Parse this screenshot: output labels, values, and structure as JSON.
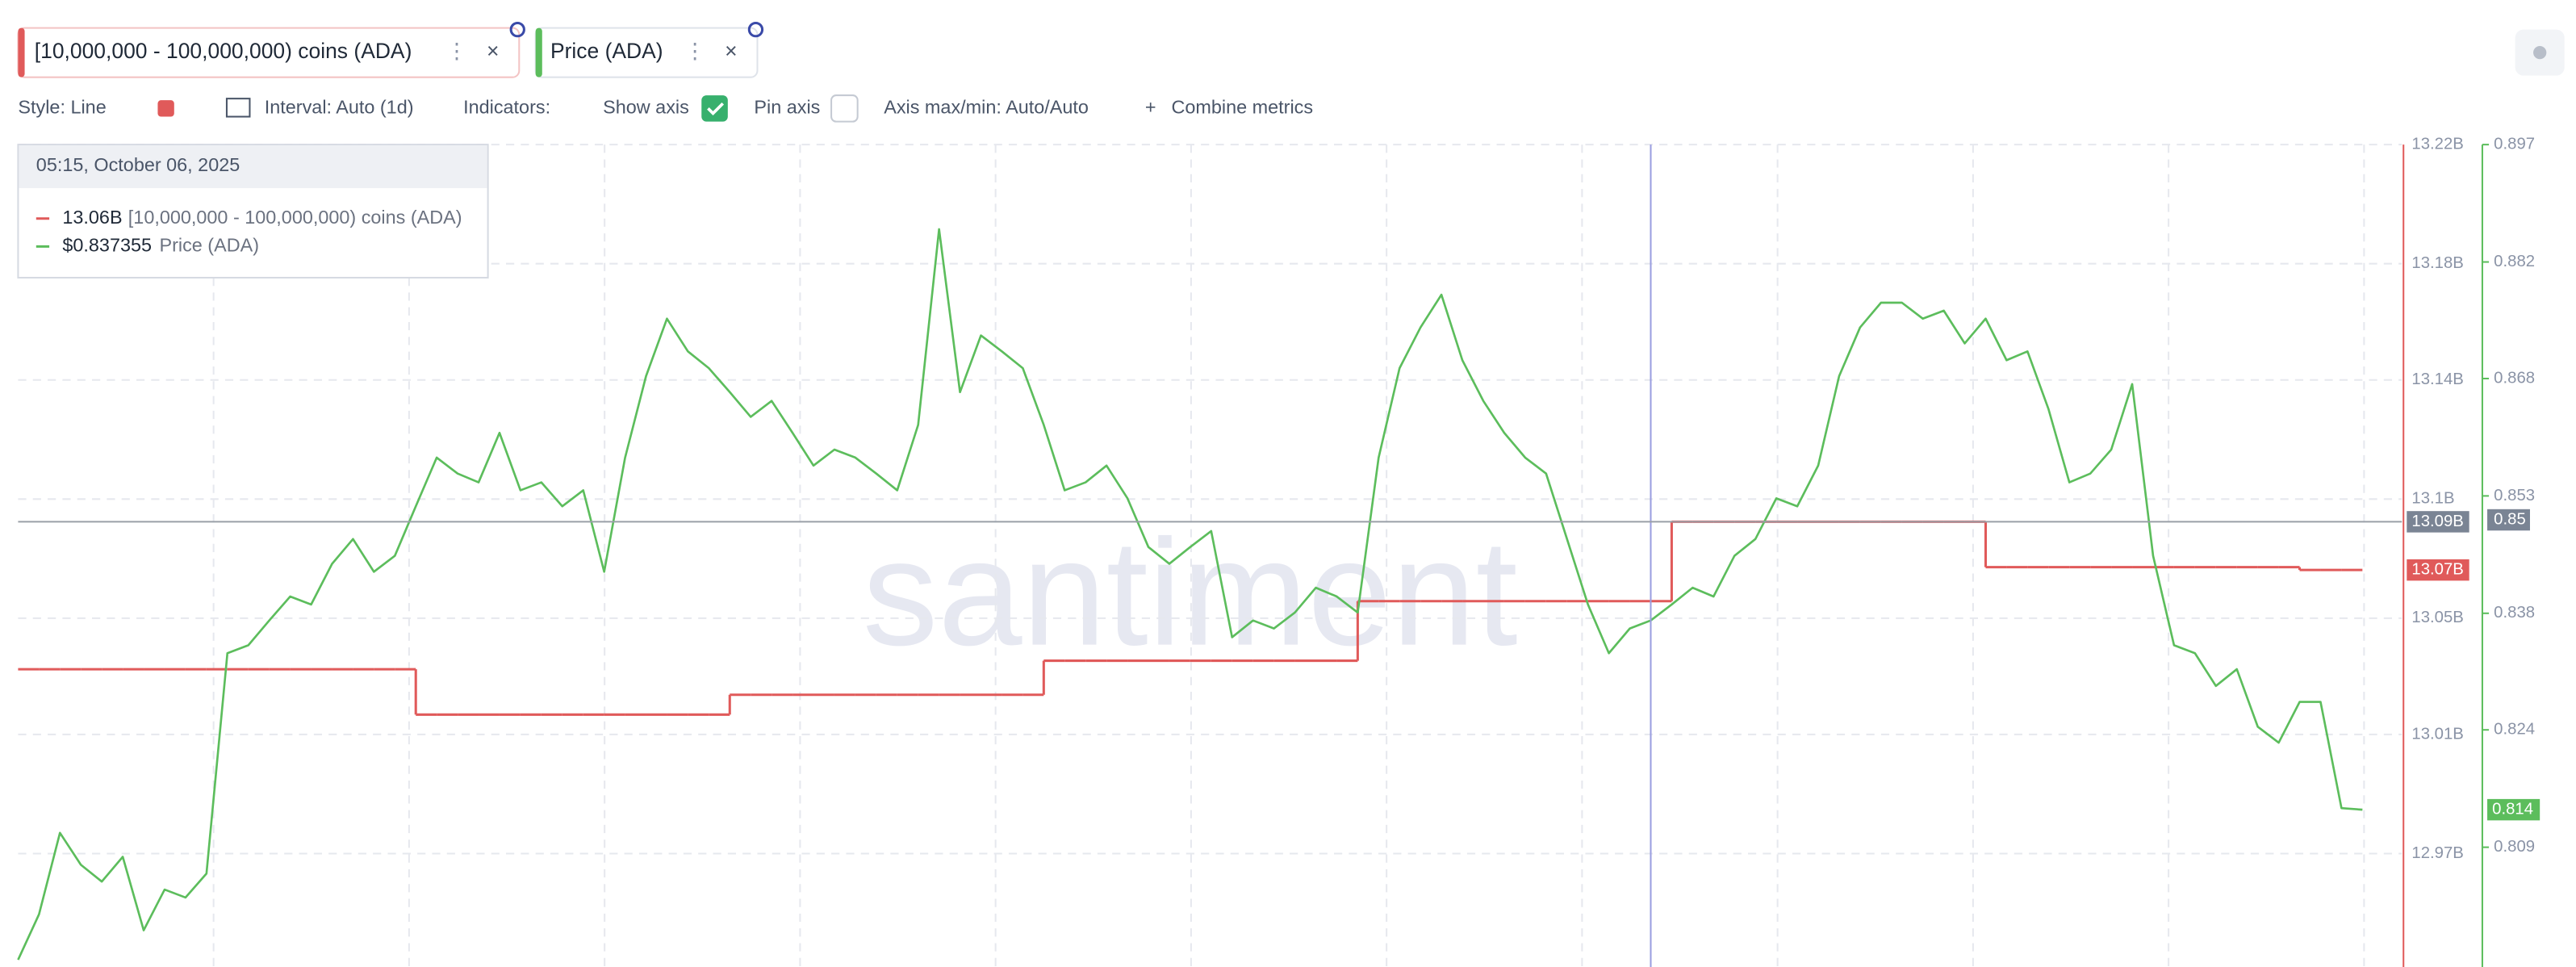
{
  "metrics": [
    {
      "name": "[10,000,000 - 100,000,000) coins (ADA)",
      "color": "#e05a5a"
    },
    {
      "name": "Price (ADA)",
      "color": "#5cbd5c"
    }
  ],
  "toolbar": {
    "style": "Style: Line",
    "interval": "Interval: Auto (1d)",
    "indicators": "Indicators:",
    "show_axis": "Show axis",
    "pin_axis": "Pin axis",
    "axis_minmax": "Axis max/min: Auto/Auto",
    "combine": "Combine metrics"
  },
  "tooltip": {
    "date": "05:15, October 06, 2025",
    "rows": [
      {
        "value": "13.06B",
        "name": "[10,000,000 - 100,000,000) coins (ADA)"
      },
      {
        "value": "$0.837355",
        "name": "Price (ADA)"
      }
    ]
  },
  "watermark": "santiment",
  "chart_data": {
    "type": "line",
    "step": true,
    "grid": true,
    "ylim": [
      12.93,
      13.22
    ],
    "yticks": [
      {
        "value": 12.97,
        "label": "12.97B"
      },
      {
        "value": 13.012,
        "label": "13.01B"
      },
      {
        "value": 13.053,
        "label": "13.05B"
      },
      {
        "value": 13.095,
        "label": "13.1B"
      },
      {
        "value": 13.137,
        "label": "13.14B"
      },
      {
        "value": 13.178,
        "label": "13.18B"
      },
      {
        "value": 13.22,
        "label": "13.22B"
      }
    ],
    "y2lim": [
      0.794,
      0.897
    ],
    "y2ticks": [
      {
        "value": 0.809,
        "label": "0.809"
      },
      {
        "value": 0.8237,
        "label": "0.824"
      },
      {
        "value": 0.8383,
        "label": "0.838"
      },
      {
        "value": 0.853,
        "label": "0.853"
      },
      {
        "value": 0.8677,
        "label": "0.868"
      },
      {
        "value": 0.8823,
        "label": "0.882"
      },
      {
        "value": 0.897,
        "label": "0.897"
      }
    ],
    "crosshair": {
      "index": 78,
      "y": {
        "value": 13.087,
        "label": "13.09B"
      },
      "y2": 0.85
    },
    "series": [
      {
        "name": "[10,000,000 - 100,000,000) coins (ADA)",
        "color": "#e05a5a",
        "last_label": "13.07B",
        "values": [
          13.035,
          13.035,
          13.035,
          13.035,
          13.035,
          13.035,
          13.035,
          13.035,
          13.035,
          13.035,
          13.035,
          13.035,
          13.035,
          13.035,
          13.035,
          13.035,
          13.035,
          13.035,
          13.035,
          13.019,
          13.019,
          13.019,
          13.019,
          13.019,
          13.019,
          13.019,
          13.019,
          13.019,
          13.019,
          13.019,
          13.019,
          13.019,
          13.019,
          13.019,
          13.026,
          13.026,
          13.026,
          13.026,
          13.026,
          13.026,
          13.026,
          13.026,
          13.026,
          13.026,
          13.026,
          13.026,
          13.026,
          13.026,
          13.026,
          13.038,
          13.038,
          13.038,
          13.038,
          13.038,
          13.038,
          13.038,
          13.038,
          13.038,
          13.038,
          13.038,
          13.038,
          13.038,
          13.038,
          13.038,
          13.059,
          13.059,
          13.059,
          13.059,
          13.059,
          13.059,
          13.059,
          13.059,
          13.059,
          13.059,
          13.059,
          13.059,
          13.059,
          13.059,
          13.059,
          13.087,
          13.087,
          13.087,
          13.087,
          13.087,
          13.087,
          13.087,
          13.087,
          13.087,
          13.087,
          13.087,
          13.087,
          13.087,
          13.087,
          13.087,
          13.071,
          13.071,
          13.071,
          13.071,
          13.071,
          13.071,
          13.071,
          13.071,
          13.071,
          13.071,
          13.071,
          13.071,
          13.071,
          13.071,
          13.071,
          13.07,
          13.07,
          13.07,
          13.07
        ]
      },
      {
        "name": "Price (ADA)",
        "color": "#5cbd5c",
        "axis": "y2",
        "last_label": "0.814",
        "values": [
          0.7949,
          0.8006,
          0.8108,
          0.8068,
          0.8047,
          0.8078,
          0.7986,
          0.8037,
          0.8027,
          0.8057,
          0.8333,
          0.8343,
          0.8374,
          0.8404,
          0.8394,
          0.8445,
          0.8476,
          0.8435,
          0.8455,
          0.8517,
          0.8578,
          0.8558,
          0.8547,
          0.8609,
          0.8537,
          0.8547,
          0.8517,
          0.8537,
          0.8435,
          0.8578,
          0.868,
          0.8752,
          0.8711,
          0.869,
          0.866,
          0.8629,
          0.8649,
          0.8609,
          0.8568,
          0.8588,
          0.8578,
          0.8558,
          0.8537,
          0.8619,
          0.8864,
          0.866,
          0.8731,
          0.8711,
          0.869,
          0.8619,
          0.8537,
          0.8547,
          0.8568,
          0.8527,
          0.8466,
          0.8445,
          0.8466,
          0.8486,
          0.8353,
          0.8374,
          0.8364,
          0.8384,
          0.8415,
          0.8404,
          0.8384,
          0.8578,
          0.869,
          0.8741,
          0.8782,
          0.87,
          0.8649,
          0.8609,
          0.8578,
          0.8558,
          0.8476,
          0.8394,
          0.8333,
          0.8364,
          0.8374,
          0.8394,
          0.8415,
          0.8404,
          0.8455,
          0.8476,
          0.8527,
          0.8517,
          0.8568,
          0.868,
          0.8741,
          0.8772,
          0.8772,
          0.8752,
          0.8762,
          0.8721,
          0.8752,
          0.87,
          0.8711,
          0.8639,
          0.8547,
          0.8558,
          0.8588,
          0.867,
          0.8455,
          0.8343,
          0.8333,
          0.8292,
          0.8313,
          0.8241,
          0.8221,
          0.8272,
          0.8272,
          0.8139,
          0.8137
        ]
      }
    ]
  }
}
